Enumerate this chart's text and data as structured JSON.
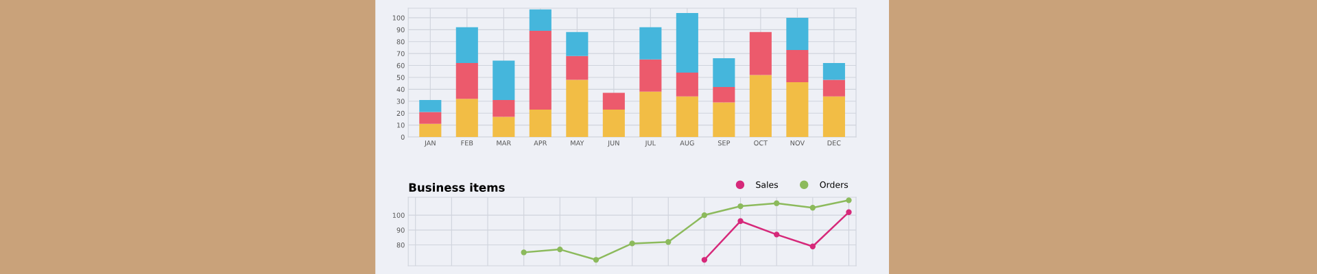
{
  "chart_data": [
    {
      "type": "bar",
      "stacked": true,
      "categories": [
        "JAN",
        "FEB",
        "MAR",
        "APR",
        "MAY",
        "JUN",
        "JUL",
        "AUG",
        "SEP",
        "OCT",
        "NOV",
        "DEC"
      ],
      "series": [
        {
          "color": "#f2bd45",
          "values": [
            11,
            32,
            17,
            23,
            48,
            23,
            38,
            34,
            29,
            52,
            46,
            34
          ]
        },
        {
          "color": "#ec5a6c",
          "values": [
            10,
            30,
            14,
            66,
            20,
            14,
            27,
            20,
            13,
            36,
            27,
            14
          ]
        },
        {
          "color": "#45b6dc",
          "values": [
            10,
            30,
            33,
            18,
            20,
            0,
            27,
            50,
            24,
            0,
            27,
            14
          ]
        }
      ],
      "ylim": [
        0,
        108
      ],
      "yticks": [
        0,
        10,
        20,
        30,
        40,
        50,
        60,
        70,
        80,
        90,
        100
      ],
      "grid": true
    },
    {
      "type": "line",
      "title": "Business items",
      "categories": [
        null,
        null,
        null,
        null,
        null,
        null,
        null,
        null,
        null,
        null,
        null,
        null,
        null
      ],
      "ylim": [
        66,
        112
      ],
      "yticks": [
        80,
        90,
        100
      ],
      "grid": true,
      "legend": "top right",
      "marker": "circle",
      "series": [
        {
          "name": "Sales",
          "color": "#d6297a",
          "values": [
            null,
            null,
            null,
            null,
            null,
            null,
            null,
            null,
            70,
            96,
            87,
            79,
            102
          ]
        },
        {
          "name": "Orders",
          "color": "#8cba5c",
          "values": [
            null,
            null,
            null,
            75,
            77,
            70,
            81,
            82,
            100,
            106,
            108,
            105,
            110
          ]
        }
      ]
    }
  ]
}
